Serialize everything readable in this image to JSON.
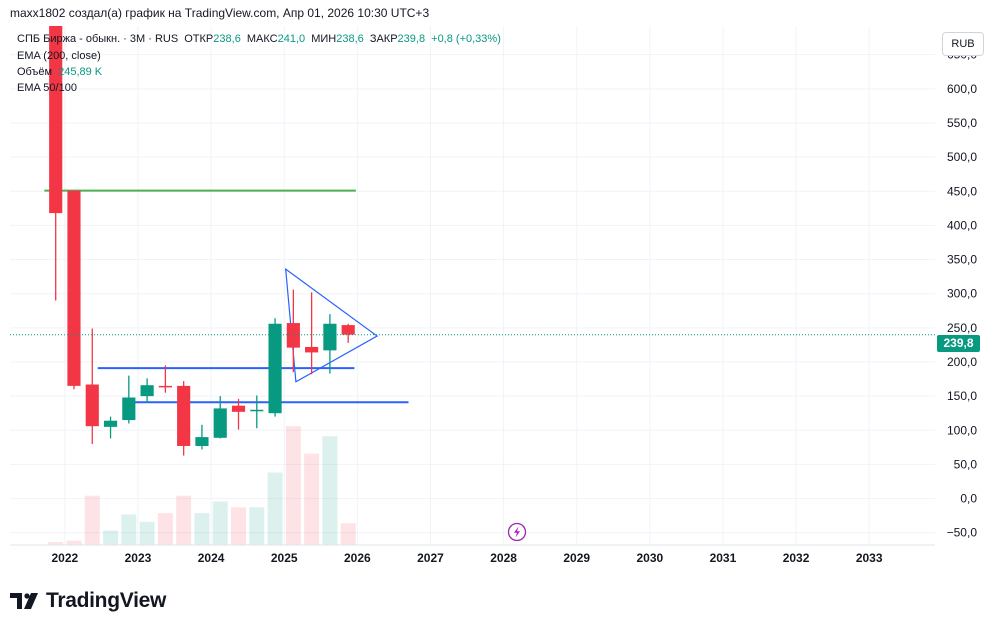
{
  "header": {
    "publisher_line": "maxx1802 создал(а) график на TradingView.com, Апр 01, 2026 10:30 UTC+3"
  },
  "legend": {
    "symbol": "СПБ Биржа - обыкн. · 3M · RUS",
    "open_label": "ОТКР",
    "open_value": "238,6",
    "high_label": "МАКС",
    "high_value": "241,0",
    "low_label": "МИН",
    "low_value": "238,6",
    "close_label": "ЗАКР",
    "close_value": "239,8",
    "change": "+0,8 (+0,33%)",
    "ema200": "EMA (200, close)",
    "volume_label": "Объём",
    "volume_value": "245,89 K",
    "ema50_100": "EMA 50/100"
  },
  "currency_button": "RUB",
  "last_price_tag": "239,8",
  "footer": {
    "brand": "TradingView"
  },
  "colors": {
    "up": "#089981",
    "down": "#f23645",
    "accent_line": "#4caf50",
    "trend_line": "#2962ff",
    "flash_icon": "#9c27b0"
  },
  "chart_data": {
    "type": "candlestick",
    "title": "СПБ Биржа - обыкн. · 3M · RUS",
    "currency": "RUB",
    "y_ticks": [
      "650,0",
      "600,0",
      "550,0",
      "500,0",
      "450,0",
      "400,0",
      "350,0",
      "300,0",
      "250,0",
      "200,0",
      "150,0",
      "100,0",
      "50,0",
      "0,0",
      "−50,0"
    ],
    "y_tick_values": [
      650,
      600,
      550,
      500,
      450,
      400,
      350,
      300,
      250,
      200,
      150,
      100,
      50,
      0,
      -50
    ],
    "x_ticks": [
      "2022",
      "2023",
      "2024",
      "2025",
      "2026",
      "2027",
      "2028",
      "2029",
      "2030",
      "2031",
      "2032",
      "2033"
    ],
    "ylim": [
      -68,
      692
    ],
    "xlim": [
      2021.25,
      2033.9
    ],
    "last_price": 239.8,
    "candles": [
      {
        "t": 2021.875,
        "o": 692,
        "h": 692,
        "l": 290,
        "c": 418
      },
      {
        "t": 2022.125,
        "o": 451,
        "h": 451,
        "l": 160,
        "c": 165
      },
      {
        "t": 2022.375,
        "o": 167,
        "h": 249,
        "l": 80,
        "c": 106
      },
      {
        "t": 2022.625,
        "o": 105,
        "h": 120,
        "l": 88,
        "c": 114
      },
      {
        "t": 2022.875,
        "o": 115,
        "h": 180,
        "l": 110,
        "c": 148
      },
      {
        "t": 2023.125,
        "o": 150,
        "h": 176,
        "l": 140,
        "c": 166
      },
      {
        "t": 2023.375,
        "o": 165,
        "h": 195,
        "l": 155,
        "c": 164
      },
      {
        "t": 2023.625,
        "o": 165,
        "h": 172,
        "l": 63,
        "c": 77
      },
      {
        "t": 2023.875,
        "o": 77,
        "h": 108,
        "l": 72,
        "c": 90
      },
      {
        "t": 2024.125,
        "o": 89,
        "h": 150,
        "l": 88,
        "c": 132
      },
      {
        "t": 2024.375,
        "o": 136,
        "h": 146,
        "l": 101,
        "c": 127
      },
      {
        "t": 2024.625,
        "o": 130,
        "h": 151,
        "l": 103,
        "c": 130
      },
      {
        "t": 2024.875,
        "o": 125,
        "h": 264,
        "l": 120,
        "c": 256
      },
      {
        "t": 2025.125,
        "o": 257,
        "h": 306,
        "l": 185,
        "c": 221
      },
      {
        "t": 2025.375,
        "o": 222,
        "h": 302,
        "l": 182,
        "c": 214
      },
      {
        "t": 2025.625,
        "o": 217,
        "h": 270,
        "l": 183,
        "c": 256
      },
      {
        "t": 2025.875,
        "o": 254,
        "h": 256,
        "l": 228,
        "c": 240
      }
    ],
    "volume_bars": [
      {
        "t": 2021.875,
        "v": 2,
        "dir": "down"
      },
      {
        "t": 2022.125,
        "v": 3,
        "dir": "down"
      },
      {
        "t": 2022.375,
        "v": 34,
        "dir": "down"
      },
      {
        "t": 2022.625,
        "v": 10,
        "dir": "up"
      },
      {
        "t": 2022.875,
        "v": 21,
        "dir": "up"
      },
      {
        "t": 2023.125,
        "v": 16,
        "dir": "up"
      },
      {
        "t": 2023.375,
        "v": 22,
        "dir": "down"
      },
      {
        "t": 2023.625,
        "v": 34,
        "dir": "down"
      },
      {
        "t": 2023.875,
        "v": 22,
        "dir": "up"
      },
      {
        "t": 2024.125,
        "v": 30,
        "dir": "up"
      },
      {
        "t": 2024.375,
        "v": 26,
        "dir": "down"
      },
      {
        "t": 2024.625,
        "v": 26,
        "dir": "up"
      },
      {
        "t": 2024.875,
        "v": 50,
        "dir": "up"
      },
      {
        "t": 2025.125,
        "v": 82,
        "dir": "down"
      },
      {
        "t": 2025.375,
        "v": 63,
        "dir": "down"
      },
      {
        "t": 2025.625,
        "v": 75,
        "dir": "up"
      },
      {
        "t": 2025.875,
        "v": 15,
        "dir": "down"
      }
    ],
    "drawings": {
      "horizontal_lines": [
        {
          "t1": 2021.72,
          "t2": 2025.98,
          "price": 451,
          "color": "#4caf50"
        },
        {
          "t1": 2022.45,
          "t2": 2025.96,
          "price": 191,
          "color": "#2962ff"
        },
        {
          "t1": 2022.95,
          "t2": 2026.7,
          "price": 141,
          "color": "#2962ff"
        }
      ],
      "triangle": {
        "points": [
          [
            2025.02,
            336
          ],
          [
            2026.27,
            238
          ],
          [
            2025.16,
            171
          ]
        ],
        "color": "#2962ff"
      }
    }
  }
}
